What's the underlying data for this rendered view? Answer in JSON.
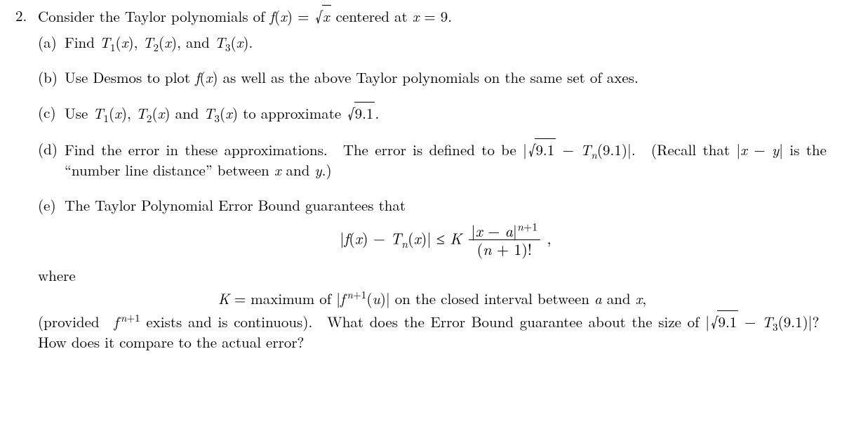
{
  "problem": {
    "number": "2.",
    "intro_html": "Consider the Taylor polynomials of <span class='it'>f</span>(<span class='it'>x</span>) = <span class='sqrt'><span class='rad'><span class='it'>x</span></span></span> centered at <span class='it'>x</span> = 9.",
    "parts": {
      "a": {
        "label": "(a)",
        "html": "Find <span class='it'>T</span><sub class='ms'>1</sub>(<span class='it'>x</span>), <span class='it'>T</span><sub class='ms'>2</sub>(<span class='it'>x</span>), and <span class='it'>T</span><sub class='ms'>3</sub>(<span class='it'>x</span>)."
      },
      "b": {
        "label": "(b)",
        "html": "Use Desmos to plot <span class='it'>f</span>(<span class='it'>x</span>) as well as the above Taylor polynomials on the same set of axes."
      },
      "c": {
        "label": "(c)",
        "html": "Use <span class='it'>T</span><sub class='ms'>1</sub>(<span class='it'>x</span>), <span class='it'>T</span><sub class='ms'>2</sub>(<span class='it'>x</span>) and <span class='it'>T</span><sub class='ms'>3</sub>(<span class='it'>x</span>) to approximate <span class='sqrt'><span class='rad'>9.1</span></span>."
      },
      "d": {
        "label": "(d)",
        "html": "Find the error in these approximations.&nbsp; The error is defined to be |<span class='sqrt'><span class='rad'>9.1</span></span> − <span class='it'>T</span><sub class='ms'><span class='it'>n</span></sub>(9.1)|.&nbsp; (Recall that |<span class='it'>x</span> − <span class='it'>y</span>| is the “number line distance” between <span class='it'>x</span> and <span class='it'>y</span>.)"
      },
      "e": {
        "label": "(e)",
        "intro": "The Taylor Polynomial Error Bound guarantees that",
        "display_html": "|<span class='it'>f</span>(<span class='it'>x</span>) − <span class='it'>T</span><sub class='ms'><span class='it'>n</span></sub>(<span class='it'>x</span>)| ≤ <span class='it'>K</span> <span class='frac'><span class='fn'>|<span class='it'>x</span> − <span class='it'>a</span>|<sup><span class='it'>n</span>+1</sup></span><span class='fd'>(<span class='it'>n</span> + 1)!</span></span> ,",
        "where": "where",
        "k_html": "<span class='it'>K</span> = maximum of |<span class='it'>f</span><sup>&thinsp;<span class='it'>n</span>+1</sup>(<span class='it'>u</span>)| on the closed interval between <span class='it'>a</span> and <span class='it'>x</span>,",
        "tail_html": "(provided&nbsp; <span class='it'>f</span><sup>&thinsp;<span class='it'>n</span>+1</sup> exists and is continuous).&nbsp; What does the Error Bound guarantee about the size of |<span class='sqrt'><span class='rad'>9.1</span></span> − <span class='it'>T</span><sub class='ms'>3</sub>(9.1)|?&nbsp; How does it compare to the actual error?"
      }
    }
  }
}
